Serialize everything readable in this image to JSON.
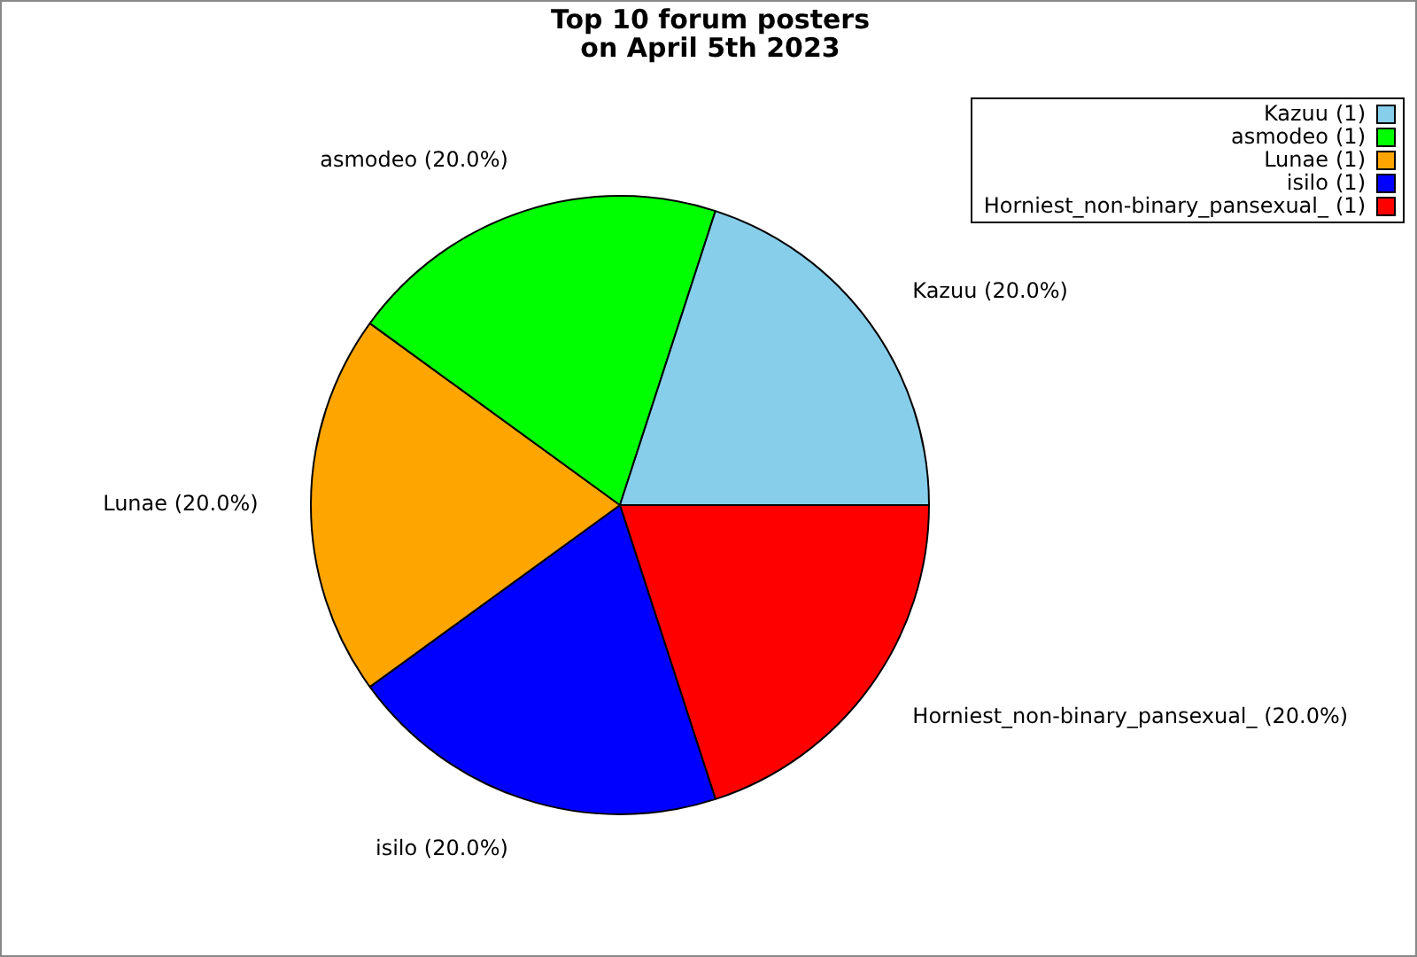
{
  "chart_data": {
    "type": "pie",
    "title": "Top 10 forum posters\non April 5th 2023",
    "categories": [
      "Kazuu",
      "asmodeo",
      "Lunae",
      "isilo",
      "Horniest_non-binary_pansexual_"
    ],
    "values": [
      20,
      20,
      20,
      20,
      20
    ],
    "value_labels": [
      "(20.0%)",
      "(20.0%)",
      "(20.0%)",
      "(20.0%)",
      "(20.0%)"
    ],
    "annotations": [
      "(1)",
      "(1)",
      "(1)",
      "(1)",
      "(1)"
    ],
    "colors": [
      "#87ceeb",
      "#00ff00",
      "#ffa500",
      "#0000ff",
      "#ff0000"
    ],
    "legend": "top right"
  }
}
